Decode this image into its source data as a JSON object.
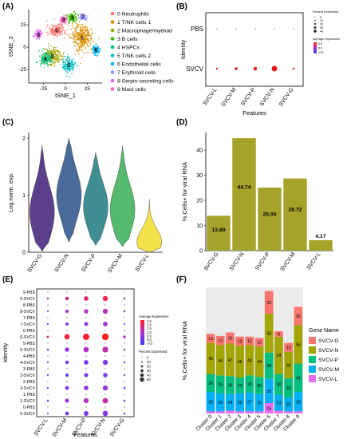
{
  "panels": {
    "a": "(A)",
    "b": "(B)",
    "c": "(C)",
    "d": "(D)",
    "e": "(E)",
    "f": "(F)"
  },
  "colors": {
    "tsne": [
      "#f8766d",
      "#d89000",
      "#a3a500",
      "#39b600",
      "#00bf7d",
      "#00bfc4",
      "#00b0f6",
      "#9590ff",
      "#e76bf3",
      "#ff62bc"
    ],
    "violin": [
      "#5b3f8b",
      "#4a6a9c",
      "#3e8e92",
      "#55b96e",
      "#f5e24a"
    ],
    "bar_d": "#a5a32a",
    "gene": {
      "SVCV-G": "#f8766d",
      "SVCV-N": "#a3a500",
      "SVCV-P": "#00bf7d",
      "SVCV-M": "#00b0f6",
      "SVCV-L": "#e76bf3"
    }
  },
  "chart_data": [
    {
      "panel": "A",
      "type": "scatter",
      "xlabel": "tSNE_1",
      "ylabel": "tSNE_2",
      "xticks": [
        -25,
        0,
        25
      ],
      "yticks": [
        -25,
        0,
        25
      ],
      "xlim": [
        -42,
        42
      ],
      "ylim": [
        -40,
        42
      ],
      "clusters": [
        {
          "id": "0",
          "name": "Neutrophils",
          "cx": -10,
          "cy": 19,
          "sx": 9,
          "sy": 6
        },
        {
          "id": "1",
          "name": "T/NK cells 1",
          "cx": 19,
          "cy": 11,
          "sx": 10,
          "sy": 12
        },
        {
          "id": "2",
          "name": "Macrophage/myeloid",
          "cx": -15,
          "cy": -10,
          "sx": 8,
          "sy": 8
        },
        {
          "id": "3",
          "name": "B cells",
          "cx": 8,
          "cy": 33,
          "sx": 5,
          "sy": 4
        },
        {
          "id": "4",
          "name": "HSPCs",
          "cx": -23,
          "cy": -13,
          "sx": 6,
          "sy": 6
        },
        {
          "id": "5",
          "name": "T/NK cells 2",
          "cx": 4,
          "cy": -20,
          "sx": 6,
          "sy": 7
        },
        {
          "id": "6",
          "name": "Endothelial cells",
          "cx": 35,
          "cy": -3,
          "sx": 3,
          "sy": 5
        },
        {
          "id": "7",
          "name": "Erythroid cells",
          "cx": 20,
          "cy": 34,
          "sx": 4,
          "sy": 3
        },
        {
          "id": "8",
          "name": "Serpin-secreting cells",
          "cx": -31,
          "cy": 14,
          "sx": 4,
          "sy": 4
        },
        {
          "id": "9",
          "name": "Mast cells",
          "cx": -2,
          "cy": 31,
          "sx": 3,
          "sy": 3
        }
      ]
    },
    {
      "panel": "B",
      "type": "scatter",
      "ylabel": "Identity",
      "xlabel": "Features",
      "categories": [
        "SVCV-L",
        "SVCV-M",
        "SVCV-P",
        "SVCV-N",
        "SVCV-G"
      ],
      "rows": [
        "PBS",
        "SVCV"
      ],
      "pct": [
        [
          0.5,
          0.5,
          0.5,
          0.5,
          0.5
        ],
        [
          1,
          5,
          10,
          35,
          1
        ]
      ],
      "avg": [
        [
          -0.5,
          -0.5,
          -0.5,
          -0.5,
          -0.5
        ],
        [
          0.5,
          0.5,
          0.5,
          0.5,
          0.5
        ]
      ],
      "legend_pct_title": "Percent Expressed",
      "legend_pct": [
        "0",
        "10",
        "20",
        "30",
        "40"
      ],
      "legend_avg_title": "Average Expression",
      "legend_avg": [
        "0.5",
        "0.0",
        "-0.5"
      ]
    },
    {
      "panel": "C",
      "type": "violin",
      "ylabel": "Log norm. exp.",
      "ylim": [
        0,
        2.1
      ],
      "yticks": [
        0,
        1,
        2
      ],
      "categories": [
        "SVCV-G",
        "SVCV-N",
        "SVCV-P",
        "SVCV-M",
        "SVCV-L"
      ],
      "ranges": [
        [
          0.02,
          1.88
        ],
        [
          0.18,
          2.0
        ],
        [
          0.12,
          1.75
        ],
        [
          0.1,
          1.86
        ],
        [
          0.0,
          0.93
        ]
      ],
      "modes": [
        0.7,
        1.0,
        0.8,
        0.75,
        0.18
      ]
    },
    {
      "panel": "D",
      "type": "bar",
      "ylabel": "% Cells+ for viral RNA",
      "ylim": [
        0,
        47
      ],
      "yticks": [
        0,
        10,
        20,
        30,
        40
      ],
      "categories": [
        "SVCV-G",
        "SVCV-N",
        "SVCV-P",
        "SVCV-M",
        "SVCV-L"
      ],
      "values": [
        13.89,
        44.74,
        25.05,
        28.72,
        4.17
      ],
      "labels": [
        "13.89",
        "44.74",
        "25.05",
        "28.72",
        "4.17"
      ]
    },
    {
      "panel": "E",
      "type": "scatter",
      "ylabel": "Identity",
      "xlabel": "Features",
      "categories": [
        "SVCV-L",
        "SVCV-M",
        "SVCV-P",
        "SVCV-N",
        "SVCV-G"
      ],
      "rows": [
        "9-PBS",
        "9-SVCV",
        "8-PBS",
        "8-SVCV",
        "7-PBS",
        "7-SVCV",
        "6-PBS",
        "6-SVCV",
        "5-PBS",
        "5-SVCV",
        "4-PBS",
        "4-SVCV",
        "3-PBS",
        "3-SVCV",
        "2-PBS",
        "2-SVCV",
        "1-PBS",
        "1-SVCV",
        "0-PBS",
        "0-SVCV"
      ],
      "pct": [
        [
          1,
          1,
          1,
          1,
          1
        ],
        [
          2,
          12,
          22,
          30,
          2
        ],
        [
          1,
          1,
          1,
          1,
          1
        ],
        [
          1,
          10,
          20,
          28,
          2
        ],
        [
          1,
          1,
          1,
          1,
          1
        ],
        [
          1,
          8,
          16,
          22,
          1
        ],
        [
          1,
          1,
          1,
          1,
          1
        ],
        [
          3,
          32,
          50,
          55,
          6
        ],
        [
          1,
          1,
          1,
          1,
          1
        ],
        [
          2,
          20,
          32,
          40,
          2
        ],
        [
          1,
          1,
          1,
          1,
          1
        ],
        [
          1,
          12,
          22,
          28,
          2
        ],
        [
          1,
          1,
          1,
          1,
          1
        ],
        [
          1,
          10,
          16,
          20,
          1
        ],
        [
          1,
          1,
          1,
          1,
          1
        ],
        [
          1,
          14,
          22,
          28,
          2
        ],
        [
          1,
          1,
          1,
          1,
          1
        ],
        [
          2,
          16,
          28,
          34,
          2
        ],
        [
          1,
          1,
          1,
          1,
          1
        ],
        [
          1,
          14,
          24,
          32,
          2
        ]
      ],
      "avg": [
        [
          -0.6,
          -0.6,
          -0.6,
          -0.6,
          -0.6
        ],
        [
          1.4,
          1.8,
          2.2,
          2.4,
          0.5
        ],
        [
          -0.6,
          -0.6,
          -0.6,
          -0.6,
          -0.6
        ],
        [
          0.6,
          1.0,
          1.2,
          1.4,
          0.3
        ],
        [
          -0.6,
          -0.6,
          -0.6,
          -0.6,
          -0.6
        ],
        [
          0.2,
          0.4,
          0.6,
          0.8,
          0.1
        ],
        [
          -0.6,
          -0.6,
          -0.6,
          -0.6,
          -0.6
        ],
        [
          2.4,
          2.6,
          2.8,
          2.9,
          1.2
        ],
        [
          -0.6,
          -0.6,
          -0.6,
          -0.6,
          -0.6
        ],
        [
          0.4,
          0.8,
          1.2,
          1.5,
          0.2
        ],
        [
          -0.6,
          -0.6,
          -0.6,
          -0.6,
          -0.6
        ],
        [
          0.0,
          0.2,
          0.3,
          0.4,
          0.0
        ],
        [
          -0.6,
          -0.6,
          -0.6,
          -0.6,
          -0.6
        ],
        [
          -0.1,
          0.0,
          0.1,
          0.2,
          -0.2
        ],
        [
          -0.6,
          -0.6,
          -0.6,
          -0.6,
          -0.6
        ],
        [
          0.2,
          0.4,
          0.6,
          0.7,
          0.0
        ],
        [
          -0.6,
          -0.6,
          -0.6,
          -0.6,
          -0.6
        ],
        [
          0.6,
          1.0,
          1.3,
          1.6,
          0.2
        ],
        [
          -0.6,
          -0.6,
          -0.6,
          -0.6,
          -0.6
        ],
        [
          0.1,
          0.2,
          0.4,
          0.5,
          0.0
        ]
      ],
      "legend_avg_title": "Average Expression",
      "legend_avg": [
        "2.5",
        "2.0",
        "1.5",
        "1.0",
        "0.5",
        "0.0",
        "-0.5"
      ],
      "legend_pct_title": "Percent Expressed",
      "legend_pct": [
        "0",
        "10",
        "20",
        "30",
        "40",
        "50"
      ]
    },
    {
      "panel": "F",
      "type": "bar",
      "ylabel": "% Cells+ for viral RNA",
      "categories": [
        "Cluster 0",
        "Cluster 1",
        "Cluster 2",
        "Cluster 3",
        "Cluster 4",
        "Cluster 5",
        "Cluster 6",
        "Cluster 7",
        "Cluster 8",
        "Cluster 9"
      ],
      "legend_title": "Gene Name",
      "series": [
        {
          "name": "SVCV-L",
          "values": [
            3,
            3,
            4,
            3,
            3,
            3,
            15,
            4,
            3,
            3
          ],
          "labels": [
            "",
            "",
            "",
            "",
            "",
            "",
            "15",
            "",
            "",
            ""
          ]
        },
        {
          "name": "SVCV-M",
          "values": [
            28,
            26,
            24,
            26,
            27,
            25,
            35,
            23,
            20,
            28
          ],
          "labels": [
            "28",
            "26",
            "24",
            "26",
            "27",
            "25",
            "35",
            "23",
            "20",
            "28"
          ]
        },
        {
          "name": "SVCV-P",
          "values": [
            26,
            26,
            26,
            23,
            25,
            25,
            38,
            30,
            28,
            41
          ],
          "labels": [
            "26",
            "26",
            "26",
            "23",
            "25",
            "25",
            "38",
            "30",
            "28",
            "41"
          ]
        },
        {
          "name": "SVCV-N",
          "values": [
            45,
            44,
            47,
            46,
            44,
            44,
            56,
            54,
            38,
            56
          ],
          "labels": [
            "45",
            "44",
            "47",
            "46",
            "44",
            "44",
            "56",
            "54",
            "38",
            "56"
          ]
        },
        {
          "name": "SVCV-G",
          "values": [
            13,
            13,
            16,
            13,
            12,
            12,
            33,
            8,
            13,
            26
          ],
          "labels": [
            "13",
            "13",
            "16",
            "13",
            "12",
            "12",
            "33",
            "8",
            "13",
            "26"
          ]
        }
      ]
    }
  ]
}
